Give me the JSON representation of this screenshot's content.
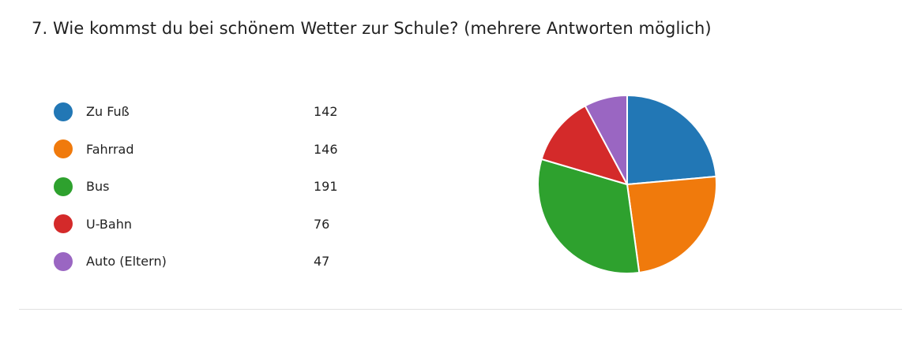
{
  "question": {
    "title": "7.  Wie kommst du bei schönem Wetter zur Schule? (mehrere Antworten möglich)"
  },
  "chart_data": {
    "type": "pie",
    "title": "7.  Wie kommst du bei schönem Wetter zur Schule? (mehrere Antworten möglich)",
    "legend_position": "left",
    "categories": [
      "Zu Fuß",
      "Fahrrad",
      "Bus",
      "U-Bahn",
      "Auto (Eltern)"
    ],
    "values": [
      142,
      146,
      191,
      76,
      47
    ],
    "colors": [
      "#2277b5",
      "#f07a0c",
      "#2ea12e",
      "#d42a2a",
      "#9a66c2"
    ]
  }
}
